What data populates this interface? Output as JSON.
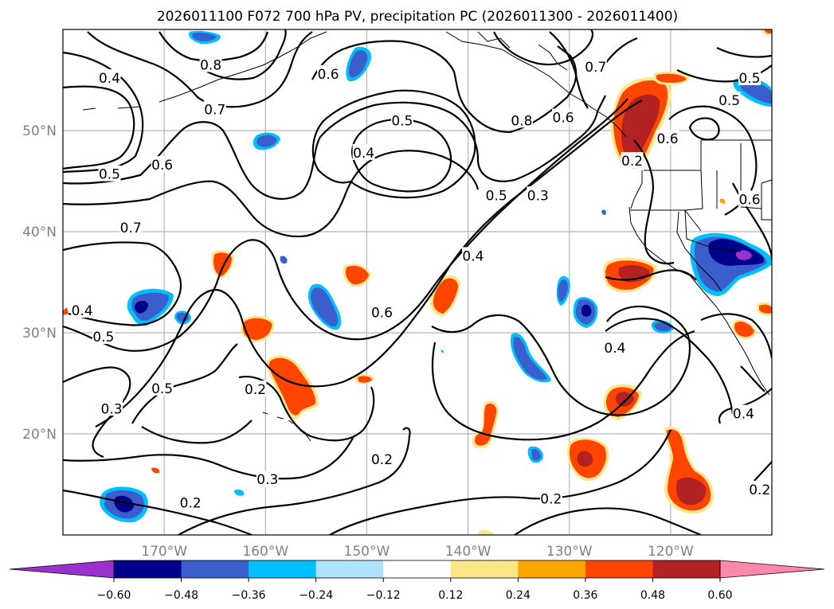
{
  "chart_data": {
    "type": "map-contour",
    "title": "2026011100 F072 700 hPa PV, precipitation PC (2026011300 - 2026011400)",
    "lon_range": [
      -180,
      -110
    ],
    "lat_range": [
      10,
      60
    ],
    "x_ticks": [
      {
        "value": -170,
        "label": "170°W"
      },
      {
        "value": -160,
        "label": "160°W"
      },
      {
        "value": -150,
        "label": "150°W"
      },
      {
        "value": -140,
        "label": "140°W"
      },
      {
        "value": -130,
        "label": "130°W"
      },
      {
        "value": -120,
        "label": "120°W"
      }
    ],
    "y_ticks": [
      {
        "value": 20,
        "label": "20°N"
      },
      {
        "value": 30,
        "label": "30°N"
      },
      {
        "value": 40,
        "label": "40°N"
      },
      {
        "value": 50,
        "label": "50°N"
      }
    ],
    "grid": true,
    "colorbar": {
      "extend": "both",
      "levels": [
        "−0.60",
        "−0.48",
        "−0.36",
        "−0.24",
        "−0.12",
        "0.12",
        "0.24",
        "0.36",
        "0.48",
        "0.60"
      ],
      "colors": [
        "#9932cc",
        "#00008b",
        "#3a5fcd",
        "#00bfff",
        "#b0e2ff",
        "#ffffff",
        "#fce68a",
        "#ffa500",
        "#ff4500",
        "#b22222",
        "#ff88aa"
      ]
    },
    "contour_labels": [
      {
        "text": "0.4",
        "lon": -175.4,
        "lat": 55.2
      },
      {
        "text": "0.8",
        "lon": -165.4,
        "lat": 56.5
      },
      {
        "text": "0.7",
        "lon": -165.0,
        "lat": 52.1
      },
      {
        "text": "0.6",
        "lon": -153.8,
        "lat": 55.6
      },
      {
        "text": "0.5",
        "lon": -146.5,
        "lat": 51.0
      },
      {
        "text": "0.4",
        "lon": -150.3,
        "lat": 47.8
      },
      {
        "text": "0.8",
        "lon": -134.7,
        "lat": 51.0
      },
      {
        "text": "0.6",
        "lon": -130.6,
        "lat": 51.3
      },
      {
        "text": "0.7",
        "lon": -127.4,
        "lat": 56.3
      },
      {
        "text": "0.5",
        "lon": -175.4,
        "lat": 45.7
      },
      {
        "text": "0.6",
        "lon": -170.2,
        "lat": 46.6
      },
      {
        "text": "0.7",
        "lon": -173.3,
        "lat": 40.4
      },
      {
        "text": "0.5",
        "lon": -137.2,
        "lat": 43.6
      },
      {
        "text": "0.3",
        "lon": -133.1,
        "lat": 43.6
      },
      {
        "text": "0.4",
        "lon": -139.5,
        "lat": 37.6
      },
      {
        "text": "0.6",
        "lon": -148.5,
        "lat": 32.0
      },
      {
        "text": "0.4",
        "lon": -178.1,
        "lat": 32.2
      },
      {
        "text": "0.5",
        "lon": -176.0,
        "lat": 29.6
      },
      {
        "text": "0.5",
        "lon": -170.2,
        "lat": 24.5
      },
      {
        "text": "0.3",
        "lon": -175.2,
        "lat": 22.5
      },
      {
        "text": "0.2",
        "lon": -161.0,
        "lat": 24.4
      },
      {
        "text": "0.3",
        "lon": -159.8,
        "lat": 15.5
      },
      {
        "text": "0.2",
        "lon": -167.4,
        "lat": 13.2
      },
      {
        "text": "0.2",
        "lon": -148.5,
        "lat": 17.5
      },
      {
        "text": "0.2",
        "lon": -131.8,
        "lat": 13.6
      },
      {
        "text": "0.4",
        "lon": -125.5,
        "lat": 28.5
      },
      {
        "text": "0.4",
        "lon": -112.8,
        "lat": 22.0
      },
      {
        "text": "0.2",
        "lon": -111.2,
        "lat": 14.5
      },
      {
        "text": "0.2",
        "lon": -123.8,
        "lat": 47.0
      },
      {
        "text": "0.6",
        "lon": -120.3,
        "lat": 49.2
      },
      {
        "text": "0.5",
        "lon": -112.2,
        "lat": 55.2
      },
      {
        "text": "0.5",
        "lon": -114.2,
        "lat": 53.0
      },
      {
        "text": "0.6",
        "lon": -112.2,
        "lat": 43.2
      }
    ]
  }
}
